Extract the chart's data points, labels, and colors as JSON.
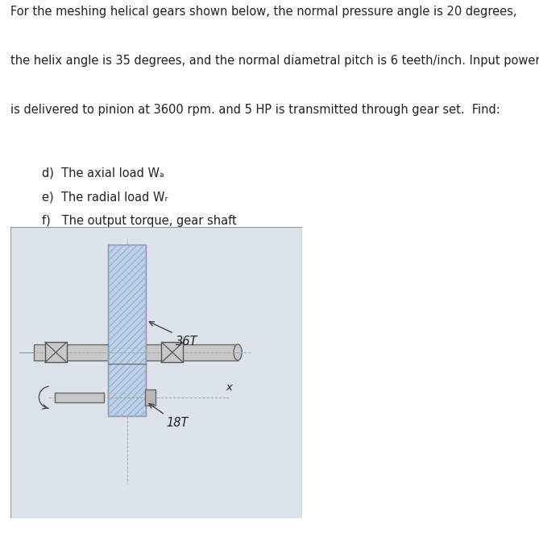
{
  "title_line1": "For the meshing helical gears shown below, the normal pressure angle is 20 degrees,",
  "title_line2": "the helix angle is 35 degrees, and the normal diametral pitch is 6 teeth/inch. Input power",
  "title_line3": "is delivered to pinion at 3600 rpm. and 5 HP is transmitted through gear set.  Find:",
  "item_d": "d)  The axial load Wₐ",
  "item_e": "e)  The radial load Wᵣ",
  "item_f": "f)   The output torque, gear shaft",
  "label_36T": "36T",
  "label_18T": "18T",
  "label_x": "x",
  "figure_bg": "#ffffff",
  "diagram_bg": "#dde3ea",
  "gear_fill": "#bed0e8",
  "gear_edge": "#666666",
  "shaft_fill": "#c8c8c8",
  "shaft_edge": "#666666",
  "bearing_fill": "#c0c0c0",
  "bearing_edge": "#555555",
  "hatch_color": "#9ab5d0",
  "centerline_color": "#aaaaaa",
  "arrow_color": "#444444",
  "text_color": "#222222",
  "font_size_title": 10.5,
  "font_size_items": 10.5,
  "font_size_labels": 9.5
}
